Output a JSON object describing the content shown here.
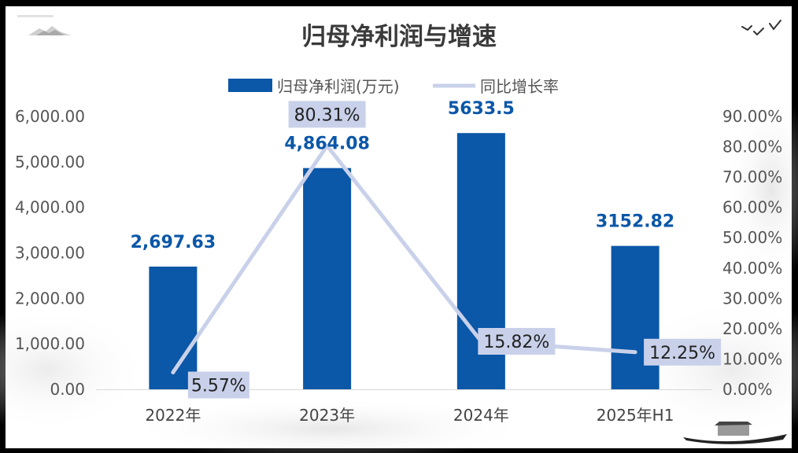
{
  "chart_data": {
    "type": "bar",
    "title": "归母净利润与增速",
    "categories": [
      "2022年",
      "2023年",
      "2024年",
      "2025年H1"
    ],
    "series": [
      {
        "name": "归母净利润(万元)",
        "type": "bar",
        "axis": "left",
        "values": [
          2697.63,
          4864.08,
          5633.5,
          3152.82
        ],
        "data_labels": [
          "2,697.63",
          "4,864.08",
          "5633.5",
          "3152.82"
        ]
      },
      {
        "name": "同比增长率",
        "type": "line",
        "axis": "right",
        "values": [
          5.57,
          80.31,
          15.82,
          12.25
        ],
        "data_labels": [
          "5.57%",
          "80.31%",
          "15.82%",
          "12.25%"
        ]
      }
    ],
    "y_left": {
      "ylim": [
        0,
        6000
      ],
      "ticks": [
        "0.00",
        "1,000.00",
        "2,000.00",
        "3,000.00",
        "4,000.00",
        "5,000.00",
        "6,000.00"
      ]
    },
    "y_right": {
      "ylim": [
        0,
        90
      ],
      "ticks": [
        "0.00%",
        "10.00%",
        "20.00%",
        "30.00%",
        "40.00%",
        "50.00%",
        "60.00%",
        "70.00%",
        "80.00%",
        "90.00%"
      ]
    },
    "legend_position": "top",
    "grid": false,
    "colors": {
      "bar": "#0b57a8",
      "line": "#c9d1ea",
      "label_box": "#c9d1ea",
      "bar_label": "#0b57a8"
    }
  }
}
